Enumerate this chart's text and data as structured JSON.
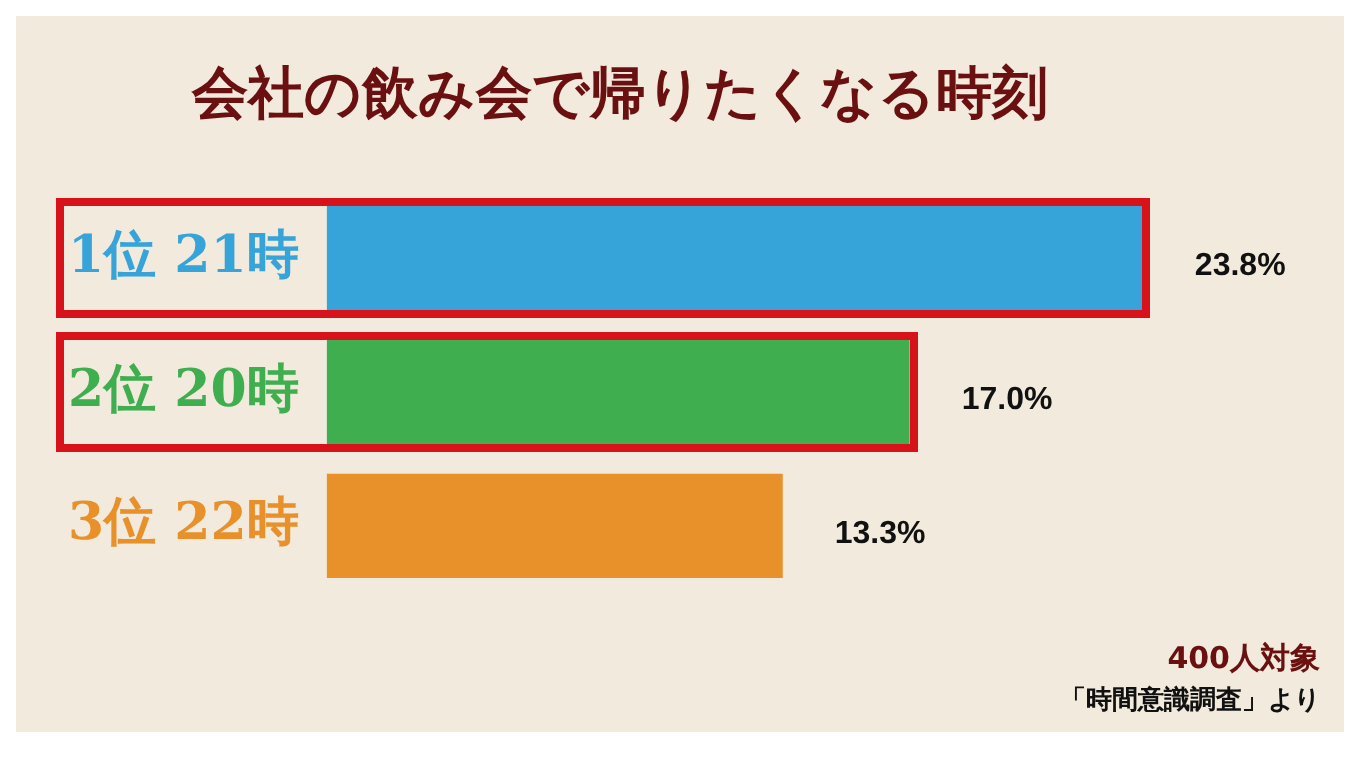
{
  "chart_data": {
    "type": "bar",
    "orientation": "horizontal",
    "title": "会社の飲み会で帰りたくなる時刻",
    "categories": [
      "1位 21時",
      "2位 20時",
      "3位 22時"
    ],
    "values": [
      23.8,
      17.0,
      13.3
    ],
    "colors": [
      "#36a3d9",
      "#3fae4f",
      "#e8912b"
    ],
    "value_labels": [
      "23.8%",
      "17.0%",
      "13.3%"
    ],
    "annotations": [
      "400人対象",
      "「時間意識調査」より"
    ]
  }
}
